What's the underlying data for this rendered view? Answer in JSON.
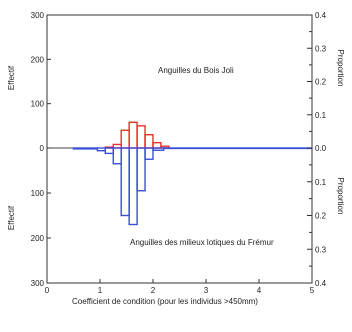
{
  "chart_data": {
    "type": "bar",
    "xlabel": "Coefficient de condition (pour les individus >450mm)",
    "xlim": [
      0,
      5
    ],
    "x_ticks": [
      "0",
      "1",
      "2",
      "3",
      "4",
      "5"
    ],
    "top_panel": {
      "annotation": "Anguilles du Bois Joli",
      "ylabel_left": "Effectif",
      "ylabel_right": "Proportion",
      "ylim_left": [
        0,
        300
      ],
      "ylim_right": [
        0,
        0.4
      ],
      "left_ticks": [
        "0",
        "100",
        "200",
        "300"
      ],
      "right_ticks": [
        "0.0",
        "0.1",
        "0.2",
        "0.3",
        "0.4"
      ],
      "color": "#e8332a",
      "bars": [
        {
          "x0": 1.1,
          "x1": 1.25,
          "value": 2
        },
        {
          "x0": 1.25,
          "x1": 1.4,
          "value": 8
        },
        {
          "x0": 1.4,
          "x1": 1.55,
          "value": 40
        },
        {
          "x0": 1.55,
          "x1": 1.7,
          "value": 58
        },
        {
          "x0": 1.7,
          "x1": 1.85,
          "value": 50
        },
        {
          "x0": 1.85,
          "x1": 2.0,
          "value": 30
        },
        {
          "x0": 2.0,
          "x1": 2.15,
          "value": 12
        },
        {
          "x0": 2.15,
          "x1": 2.3,
          "value": 4
        }
      ]
    },
    "bottom_panel": {
      "annotation": "Anguilles des milieux lotiques du Frémur",
      "ylabel_left": "Effectif",
      "ylabel_right": "Proportion",
      "ylim_left": [
        0,
        300
      ],
      "ylim_right": [
        0,
        0.4
      ],
      "left_ticks": [
        "100",
        "200",
        "300"
      ],
      "right_ticks": [
        "0.1",
        "0.2",
        "0.3",
        "0.4"
      ],
      "color": "#3a4fd8",
      "bars": [
        {
          "x0": 0.5,
          "x1": 0.95,
          "value": 2
        },
        {
          "x0": 0.95,
          "x1": 1.1,
          "value": 6
        },
        {
          "x0": 1.1,
          "x1": 1.25,
          "value": 12
        },
        {
          "x0": 1.25,
          "x1": 1.4,
          "value": 35
        },
        {
          "x0": 1.4,
          "x1": 1.55,
          "value": 150
        },
        {
          "x0": 1.55,
          "x1": 1.7,
          "value": 170
        },
        {
          "x0": 1.7,
          "x1": 1.85,
          "value": 95
        },
        {
          "x0": 1.85,
          "x1": 2.0,
          "value": 25
        },
        {
          "x0": 2.0,
          "x1": 2.2,
          "value": 5
        },
        {
          "x0": 2.2,
          "x1": 5.0,
          "value": 1
        }
      ]
    }
  }
}
